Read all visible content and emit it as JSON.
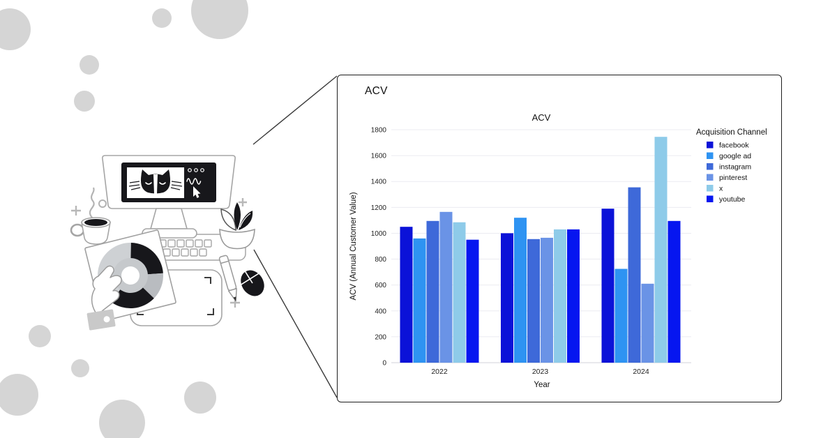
{
  "panel": {
    "heading": "ACV"
  },
  "chart_data": {
    "type": "bar",
    "title": "ACV",
    "xlabel": "Year",
    "ylabel": "ACV (Annual Customer Value)",
    "legend_title": "Acquisition Channel",
    "legend_position": "right",
    "grid": true,
    "ylim": [
      0,
      1800
    ],
    "yticks": [
      0,
      200,
      400,
      600,
      800,
      1000,
      1200,
      1400,
      1600,
      1800
    ],
    "categories": [
      "2022",
      "2023",
      "2024"
    ],
    "series": [
      {
        "name": "facebook",
        "color": "#0b12d8",
        "values": [
          1050,
          1000,
          1190
        ]
      },
      {
        "name": "google ad",
        "color": "#2e93f2",
        "values": [
          960,
          1120,
          725
        ]
      },
      {
        "name": "instagram",
        "color": "#3e69d9",
        "values": [
          1095,
          955,
          1355
        ]
      },
      {
        "name": "pinterest",
        "color": "#6a93e6",
        "values": [
          1165,
          965,
          610
        ]
      },
      {
        "name": "x",
        "color": "#8ecbe9",
        "values": [
          1085,
          1030,
          1745
        ]
      },
      {
        "name": "youtube",
        "color": "#0616f0",
        "values": [
          950,
          1030,
          1095
        ]
      }
    ]
  }
}
